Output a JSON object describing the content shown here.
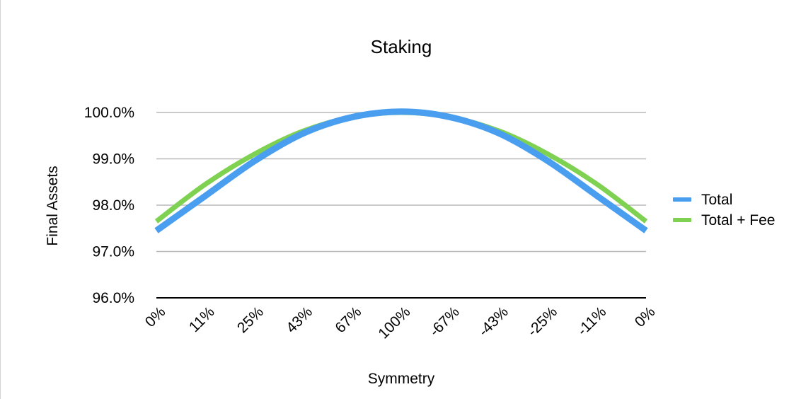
{
  "chart_data": {
    "type": "line",
    "title": "Staking",
    "xlabel": "Symmetry",
    "ylabel": "Final Assets",
    "categories": [
      "0%",
      "11%",
      "25%",
      "43%",
      "67%",
      "100%",
      "-67%",
      "-43%",
      "-25%",
      "-11%",
      "0%"
    ],
    "y_ticks": [
      "96.0%",
      "97.0%",
      "98.0%",
      "99.0%",
      "100.0%"
    ],
    "ylim": [
      96.0,
      100.0
    ],
    "y_unit": "%",
    "grid": true,
    "legend_position": "right",
    "series": [
      {
        "name": "Total",
        "color": "#4a9eef",
        "values": [
          97.45,
          98.2,
          98.95,
          99.55,
          99.9,
          100.02,
          99.9,
          99.55,
          98.95,
          98.2,
          97.45
        ]
      },
      {
        "name": "Total + Fee",
        "color": "#7ed151",
        "values": [
          97.65,
          98.45,
          99.1,
          99.6,
          99.9,
          100.0,
          99.9,
          99.6,
          99.1,
          98.45,
          97.65
        ]
      }
    ]
  }
}
